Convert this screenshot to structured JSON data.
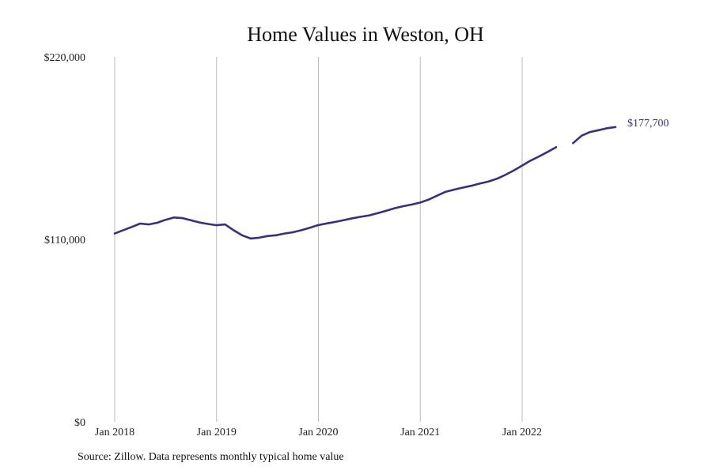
{
  "chart_data": {
    "type": "line",
    "title": "Home Values in Weston, OH",
    "xlabel": "",
    "ylabel": "",
    "ylim": [
      0,
      220000
    ],
    "y_ticks": [
      {
        "value": 0,
        "label": "$0"
      },
      {
        "value": 110000,
        "label": "$110,000"
      },
      {
        "value": 220000,
        "label": "$220,000"
      }
    ],
    "x_ticks": [
      {
        "value": "2018-01",
        "label": "Jan 2018"
      },
      {
        "value": "2019-01",
        "label": "Jan 2019"
      },
      {
        "value": "2020-01",
        "label": "Jan 2020"
      },
      {
        "value": "2021-01",
        "label": "Jan 2021"
      },
      {
        "value": "2022-01",
        "label": "Jan 2022"
      }
    ],
    "x_range": [
      "2018-01",
      "2022-12"
    ],
    "grid": {
      "vertical": true,
      "horizontal": false
    },
    "legend": "none",
    "series": [
      {
        "color": "#3a2e83",
        "end_label": "$177,700",
        "points": [
          [
            "2018-01",
            113500
          ],
          [
            "2018-02",
            115500
          ],
          [
            "2018-03",
            117500
          ],
          [
            "2018-04",
            119500
          ],
          [
            "2018-05",
            119000
          ],
          [
            "2018-06",
            120000
          ],
          [
            "2018-07",
            121800
          ],
          [
            "2018-08",
            123200
          ],
          [
            "2018-09",
            122800
          ],
          [
            "2018-10",
            121500
          ],
          [
            "2018-11",
            120200
          ],
          [
            "2018-12",
            119300
          ],
          [
            "2019-01",
            118500
          ],
          [
            "2019-02",
            119000
          ],
          [
            "2019-03",
            115500
          ],
          [
            "2019-04",
            112500
          ],
          [
            "2019-05",
            110500
          ],
          [
            "2019-06",
            111000
          ],
          [
            "2019-07",
            112000
          ],
          [
            "2019-08",
            112500
          ],
          [
            "2019-09",
            113500
          ],
          [
            "2019-10",
            114300
          ],
          [
            "2019-11",
            115500
          ],
          [
            "2019-12",
            117000
          ],
          [
            "2020-01",
            118600
          ],
          [
            "2020-02",
            119600
          ],
          [
            "2020-03",
            120500
          ],
          [
            "2020-04",
            121600
          ],
          [
            "2020-05",
            122700
          ],
          [
            "2020-06",
            123600
          ],
          [
            "2020-07",
            124500
          ],
          [
            "2020-08",
            125800
          ],
          [
            "2020-09",
            127300
          ],
          [
            "2020-10",
            128800
          ],
          [
            "2020-11",
            130000
          ],
          [
            "2020-12",
            131000
          ],
          [
            "2021-01",
            132200
          ],
          [
            "2021-02",
            134000
          ],
          [
            "2021-03",
            136400
          ],
          [
            "2021-04",
            138700
          ],
          [
            "2021-05",
            140000
          ],
          [
            "2021-06",
            141200
          ],
          [
            "2021-07",
            142300
          ],
          [
            "2021-08",
            143600
          ],
          [
            "2021-09",
            144800
          ],
          [
            "2021-10",
            146500
          ],
          [
            "2021-11",
            148800
          ],
          [
            "2021-12",
            151500
          ],
          [
            "2022-01",
            154500
          ],
          [
            "2022-02",
            157500
          ],
          [
            "2022-03",
            160000
          ],
          [
            "2022-04",
            162700
          ],
          [
            "2022-05",
            165500
          ],
          [
            "2022-06",
            null
          ],
          [
            "2022-07",
            168000
          ],
          [
            "2022-08",
            172500
          ],
          [
            "2022-09",
            174700
          ],
          [
            "2022-10",
            175800
          ],
          [
            "2022-11",
            177000
          ],
          [
            "2022-12",
            177700
          ]
        ]
      }
    ]
  },
  "footer": {
    "source": "Source: Zillow. Data represents monthly typical home value"
  }
}
